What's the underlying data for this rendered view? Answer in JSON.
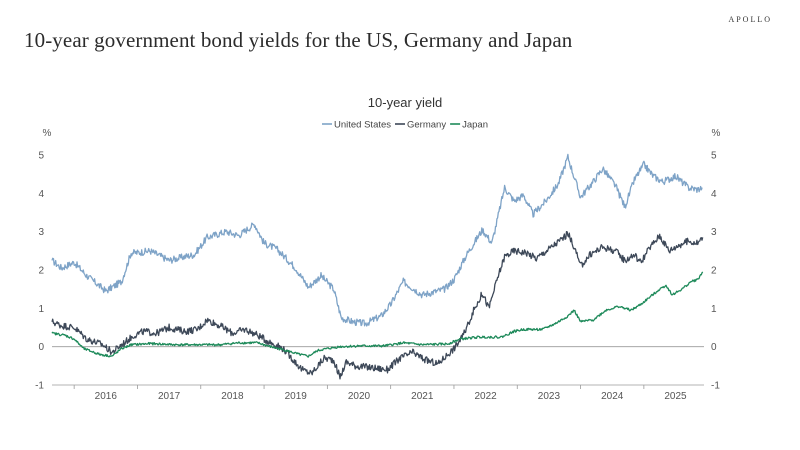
{
  "slide": {
    "title": "10-year government bond yields for the US, Germany and Japan",
    "brand": "APOLLO"
  },
  "chart_data": {
    "type": "line",
    "title": "10-year yield",
    "unit_left": "%",
    "unit_right": "%",
    "ylim": [
      -1,
      5
    ],
    "yticks": [
      -1,
      0,
      1,
      2,
      3,
      4,
      5
    ],
    "xlim": [
      2015.65,
      2025.95
    ],
    "year_labels": [
      "2016",
      "2017",
      "2018",
      "2019",
      "2020",
      "2021",
      "2022",
      "2023",
      "2024",
      "2025"
    ],
    "grid": false,
    "legend": "top-center",
    "series": [
      {
        "name": "United States",
        "color": "#7ea3c7",
        "points": [
          [
            2015.65,
            2.25
          ],
          [
            2015.8,
            2.05
          ],
          [
            2016.0,
            2.2
          ],
          [
            2016.2,
            1.85
          ],
          [
            2016.5,
            1.45
          ],
          [
            2016.75,
            1.7
          ],
          [
            2016.9,
            2.45
          ],
          [
            2017.0,
            2.45
          ],
          [
            2017.2,
            2.5
          ],
          [
            2017.5,
            2.25
          ],
          [
            2017.75,
            2.35
          ],
          [
            2017.9,
            2.4
          ],
          [
            2018.1,
            2.85
          ],
          [
            2018.4,
            3.0
          ],
          [
            2018.6,
            2.9
          ],
          [
            2018.85,
            3.2
          ],
          [
            2019.0,
            2.7
          ],
          [
            2019.2,
            2.55
          ],
          [
            2019.5,
            2.05
          ],
          [
            2019.7,
            1.55
          ],
          [
            2019.9,
            1.85
          ],
          [
            2020.1,
            1.5
          ],
          [
            2020.22,
            0.75
          ],
          [
            2020.4,
            0.65
          ],
          [
            2020.6,
            0.6
          ],
          [
            2020.85,
            0.8
          ],
          [
            2021.0,
            1.1
          ],
          [
            2021.2,
            1.7
          ],
          [
            2021.5,
            1.35
          ],
          [
            2021.85,
            1.5
          ],
          [
            2022.0,
            1.75
          ],
          [
            2022.2,
            2.4
          ],
          [
            2022.45,
            3.05
          ],
          [
            2022.6,
            2.7
          ],
          [
            2022.8,
            4.15
          ],
          [
            2022.95,
            3.8
          ],
          [
            2023.1,
            3.95
          ],
          [
            2023.25,
            3.45
          ],
          [
            2023.45,
            3.8
          ],
          [
            2023.65,
            4.25
          ],
          [
            2023.8,
            4.95
          ],
          [
            2024.0,
            3.9
          ],
          [
            2024.2,
            4.3
          ],
          [
            2024.35,
            4.65
          ],
          [
            2024.55,
            4.2
          ],
          [
            2024.7,
            3.65
          ],
          [
            2024.85,
            4.35
          ],
          [
            2025.0,
            4.75
          ],
          [
            2025.15,
            4.45
          ],
          [
            2025.3,
            4.3
          ],
          [
            2025.5,
            4.45
          ],
          [
            2025.7,
            4.15
          ],
          [
            2025.85,
            4.1
          ],
          [
            2025.92,
            4.15
          ]
        ]
      },
      {
        "name": "Germany",
        "color": "#3d4858",
        "points": [
          [
            2015.65,
            0.65
          ],
          [
            2015.8,
            0.55
          ],
          [
            2016.0,
            0.5
          ],
          [
            2016.2,
            0.2
          ],
          [
            2016.45,
            0.05
          ],
          [
            2016.6,
            -0.15
          ],
          [
            2016.75,
            0.05
          ],
          [
            2016.95,
            0.3
          ],
          [
            2017.1,
            0.4
          ],
          [
            2017.3,
            0.35
          ],
          [
            2017.5,
            0.5
          ],
          [
            2017.75,
            0.4
          ],
          [
            2017.95,
            0.45
          ],
          [
            2018.1,
            0.7
          ],
          [
            2018.3,
            0.55
          ],
          [
            2018.5,
            0.35
          ],
          [
            2018.7,
            0.45
          ],
          [
            2018.9,
            0.3
          ],
          [
            2019.05,
            0.15
          ],
          [
            2019.3,
            -0.05
          ],
          [
            2019.6,
            -0.6
          ],
          [
            2019.75,
            -0.7
          ],
          [
            2019.95,
            -0.3
          ],
          [
            2020.1,
            -0.35
          ],
          [
            2020.2,
            -0.8
          ],
          [
            2020.3,
            -0.4
          ],
          [
            2020.45,
            -0.5
          ],
          [
            2020.7,
            -0.55
          ],
          [
            2020.95,
            -0.6
          ],
          [
            2021.15,
            -0.3
          ],
          [
            2021.35,
            -0.15
          ],
          [
            2021.55,
            -0.35
          ],
          [
            2021.75,
            -0.45
          ],
          [
            2021.9,
            -0.2
          ],
          [
            2022.0,
            -0.05
          ],
          [
            2022.15,
            0.3
          ],
          [
            2022.3,
            0.9
          ],
          [
            2022.45,
            1.4
          ],
          [
            2022.55,
            1.0
          ],
          [
            2022.7,
            1.85
          ],
          [
            2022.8,
            2.35
          ],
          [
            2022.95,
            2.5
          ],
          [
            2023.15,
            2.45
          ],
          [
            2023.3,
            2.3
          ],
          [
            2023.5,
            2.55
          ],
          [
            2023.7,
            2.8
          ],
          [
            2023.8,
            2.95
          ],
          [
            2023.9,
            2.6
          ],
          [
            2024.0,
            2.1
          ],
          [
            2024.15,
            2.4
          ],
          [
            2024.35,
            2.6
          ],
          [
            2024.55,
            2.5
          ],
          [
            2024.7,
            2.25
          ],
          [
            2024.85,
            2.4
          ],
          [
            2024.95,
            2.2
          ],
          [
            2025.1,
            2.6
          ],
          [
            2025.25,
            2.9
          ],
          [
            2025.4,
            2.5
          ],
          [
            2025.55,
            2.65
          ],
          [
            2025.7,
            2.75
          ],
          [
            2025.85,
            2.7
          ],
          [
            2025.93,
            2.85
          ]
        ]
      },
      {
        "name": "Japan",
        "color": "#1e8a5a",
        "points": [
          [
            2015.65,
            0.35
          ],
          [
            2015.85,
            0.3
          ],
          [
            2016.0,
            0.2
          ],
          [
            2016.15,
            -0.05
          ],
          [
            2016.4,
            -0.2
          ],
          [
            2016.6,
            -0.25
          ],
          [
            2016.75,
            -0.05
          ],
          [
            2016.9,
            0.05
          ],
          [
            2017.2,
            0.08
          ],
          [
            2017.6,
            0.05
          ],
          [
            2017.9,
            0.05
          ],
          [
            2018.3,
            0.05
          ],
          [
            2018.6,
            0.1
          ],
          [
            2018.9,
            0.1
          ],
          [
            2019.1,
            0.0
          ],
          [
            2019.35,
            -0.1
          ],
          [
            2019.55,
            -0.2
          ],
          [
            2019.7,
            -0.25
          ],
          [
            2019.85,
            -0.1
          ],
          [
            2020.0,
            -0.05
          ],
          [
            2020.2,
            0.0
          ],
          [
            2020.5,
            0.02
          ],
          [
            2020.9,
            0.02
          ],
          [
            2021.2,
            0.1
          ],
          [
            2021.5,
            0.05
          ],
          [
            2021.9,
            0.07
          ],
          [
            2022.1,
            0.2
          ],
          [
            2022.4,
            0.25
          ],
          [
            2022.75,
            0.25
          ],
          [
            2022.95,
            0.4
          ],
          [
            2023.1,
            0.45
          ],
          [
            2023.4,
            0.45
          ],
          [
            2023.6,
            0.6
          ],
          [
            2023.8,
            0.8
          ],
          [
            2023.9,
            0.95
          ],
          [
            2024.0,
            0.65
          ],
          [
            2024.2,
            0.7
          ],
          [
            2024.4,
            0.95
          ],
          [
            2024.6,
            1.05
          ],
          [
            2024.8,
            0.95
          ],
          [
            2024.95,
            1.1
          ],
          [
            2025.1,
            1.3
          ],
          [
            2025.25,
            1.5
          ],
          [
            2025.35,
            1.6
          ],
          [
            2025.45,
            1.35
          ],
          [
            2025.6,
            1.5
          ],
          [
            2025.75,
            1.7
          ],
          [
            2025.85,
            1.75
          ],
          [
            2025.93,
            1.95
          ]
        ]
      }
    ]
  }
}
